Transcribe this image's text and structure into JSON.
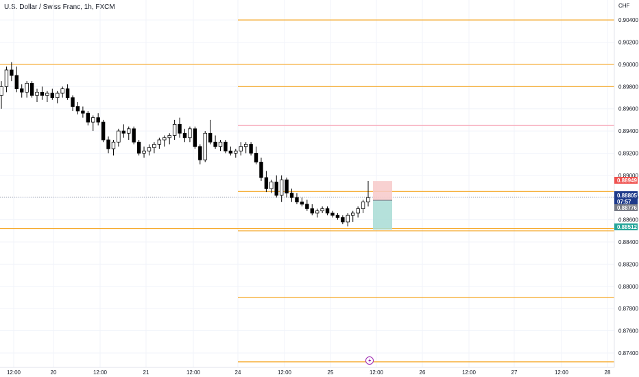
{
  "header": {
    "symbol_title": "U.S. Dollar / Swiss Franc, 1h, FXCM"
  },
  "currency_label": "CHF",
  "colors": {
    "horizontal_line": "#f5a623",
    "resistance_line": "#f7a8b8",
    "stop_zone": "#f7c9c9",
    "target_zone": "#a8dcd5",
    "current_price_tag": "#1e3a8a",
    "stop_tag": "#ef5350",
    "target_tag": "#26a69a",
    "entry_tag": "#787b86",
    "candle_up": "#ffffff",
    "candle_down": "#000000"
  },
  "price_tags": {
    "stop": "0.88949",
    "current": "0.88805",
    "countdown": "07:57",
    "entry": "0.88776",
    "target": "0.88512"
  },
  "event_icon": "lightning-icon",
  "chart_data": {
    "type": "candlestick",
    "title": "U.S. Dollar / Swiss Franc, 1h, FXCM",
    "ylabel": "CHF",
    "ylim": [
      0.8727,
      0.9058
    ],
    "y_ticks": [
      "0.90400",
      "0.90200",
      "0.90000",
      "0.89800",
      "0.89600",
      "0.89400",
      "0.89200",
      "0.89000",
      "0.88800",
      "0.88600",
      "0.88400",
      "0.88200",
      "0.88000",
      "0.87800",
      "0.87600",
      "0.87400"
    ],
    "x_ticks": [
      "12:00",
      "20",
      "12:00",
      "21",
      "12:00",
      "24",
      "12:00",
      "25",
      "12:00",
      "26",
      "12:00",
      "27",
      "12:00",
      "28"
    ],
    "horizontal_lines": [
      {
        "price": 0.904,
        "start": "24"
      },
      {
        "price": 0.9,
        "start": "left-edge"
      },
      {
        "price": 0.898,
        "start": "24"
      },
      {
        "price": 0.88855,
        "start": "24"
      },
      {
        "price": 0.8852,
        "start": "left-edge"
      },
      {
        "price": 0.885,
        "start": "24"
      },
      {
        "price": 0.879,
        "start": "24"
      },
      {
        "price": 0.8732,
        "start": "24"
      }
    ],
    "resistance_line": {
      "price": 0.8945,
      "start": "24"
    },
    "position": {
      "entry": 0.88776,
      "stop": 0.88949,
      "target": 0.88512
    },
    "current_price": 0.88805,
    "candles": [
      [
        0.8972,
        0.8985,
        0.896,
        0.898
      ],
      [
        0.898,
        0.8998,
        0.8975,
        0.8995
      ],
      [
        0.8995,
        0.9002,
        0.8985,
        0.899
      ],
      [
        0.899,
        0.8998,
        0.8975,
        0.8978
      ],
      [
        0.8978,
        0.8982,
        0.897,
        0.8975
      ],
      [
        0.8975,
        0.8985,
        0.897,
        0.8983
      ],
      [
        0.8983,
        0.8985,
        0.897,
        0.8972
      ],
      [
        0.8972,
        0.8978,
        0.8966,
        0.8975
      ],
      [
        0.8975,
        0.898,
        0.8968,
        0.8972
      ],
      [
        0.8972,
        0.8976,
        0.8966,
        0.8974
      ],
      [
        0.8974,
        0.8978,
        0.8968,
        0.897
      ],
      [
        0.897,
        0.8976,
        0.8965,
        0.8974
      ],
      [
        0.8974,
        0.898,
        0.897,
        0.8978
      ],
      [
        0.8978,
        0.8982,
        0.8968,
        0.897
      ],
      [
        0.897,
        0.8972,
        0.8958,
        0.8962
      ],
      [
        0.8962,
        0.8966,
        0.8955,
        0.8958
      ],
      [
        0.8958,
        0.8962,
        0.8952,
        0.8956
      ],
      [
        0.8956,
        0.8958,
        0.8945,
        0.8948
      ],
      [
        0.8948,
        0.8954,
        0.894,
        0.8952
      ],
      [
        0.8952,
        0.8956,
        0.8945,
        0.8948
      ],
      [
        0.8948,
        0.895,
        0.893,
        0.8932
      ],
      [
        0.8932,
        0.8935,
        0.892,
        0.8924
      ],
      [
        0.8924,
        0.8932,
        0.8918,
        0.893
      ],
      [
        0.893,
        0.8942,
        0.8926,
        0.894
      ],
      [
        0.894,
        0.8946,
        0.8934,
        0.8938
      ],
      [
        0.8938,
        0.8944,
        0.8932,
        0.8942
      ],
      [
        0.8942,
        0.8944,
        0.8928,
        0.893
      ],
      [
        0.893,
        0.8932,
        0.8918,
        0.892
      ],
      [
        0.892,
        0.8926,
        0.8916,
        0.8922
      ],
      [
        0.8922,
        0.8928,
        0.8918,
        0.8925
      ],
      [
        0.8925,
        0.893,
        0.892,
        0.8928
      ],
      [
        0.8928,
        0.8934,
        0.8924,
        0.8932
      ],
      [
        0.8932,
        0.8936,
        0.8926,
        0.8934
      ],
      [
        0.8934,
        0.8938,
        0.8928,
        0.8936
      ],
      [
        0.8936,
        0.895,
        0.8932,
        0.8946
      ],
      [
        0.8946,
        0.8952,
        0.8934,
        0.8938
      ],
      [
        0.8938,
        0.8942,
        0.893,
        0.8934
      ],
      [
        0.8934,
        0.8944,
        0.893,
        0.8942
      ],
      [
        0.8942,
        0.8944,
        0.8924,
        0.8926
      ],
      [
        0.8926,
        0.8928,
        0.891,
        0.8914
      ],
      [
        0.8914,
        0.894,
        0.8912,
        0.8938
      ],
      [
        0.8938,
        0.895,
        0.8928,
        0.893
      ],
      [
        0.893,
        0.8936,
        0.8924,
        0.8926
      ],
      [
        0.8926,
        0.8932,
        0.8922,
        0.893
      ],
      [
        0.893,
        0.8932,
        0.892,
        0.8922
      ],
      [
        0.8922,
        0.8926,
        0.8918,
        0.892
      ],
      [
        0.892,
        0.8924,
        0.8916,
        0.8922
      ],
      [
        0.8922,
        0.893,
        0.8918,
        0.8926
      ],
      [
        0.8926,
        0.893,
        0.892,
        0.8928
      ],
      [
        0.8928,
        0.893,
        0.8918,
        0.892
      ],
      [
        0.892,
        0.8926,
        0.891,
        0.8912
      ],
      [
        0.8912,
        0.8916,
        0.8895,
        0.8898
      ],
      [
        0.8898,
        0.8904,
        0.8885,
        0.8888
      ],
      [
        0.8888,
        0.8896,
        0.8884,
        0.8894
      ],
      [
        0.8894,
        0.89,
        0.888,
        0.8882
      ],
      [
        0.8882,
        0.89,
        0.8876,
        0.8896
      ],
      [
        0.8896,
        0.8898,
        0.888,
        0.8884
      ],
      [
        0.8884,
        0.8888,
        0.8876,
        0.888
      ],
      [
        0.888,
        0.8884,
        0.8874,
        0.8876
      ],
      [
        0.8876,
        0.888,
        0.8872,
        0.8874
      ],
      [
        0.8874,
        0.8878,
        0.8868,
        0.887
      ],
      [
        0.887,
        0.8874,
        0.8864,
        0.8866
      ],
      [
        0.8866,
        0.887,
        0.8862,
        0.8868
      ],
      [
        0.8868,
        0.8872,
        0.8866,
        0.887
      ],
      [
        0.887,
        0.8872,
        0.8864,
        0.8866
      ],
      [
        0.8866,
        0.8868,
        0.8862,
        0.8864
      ],
      [
        0.8864,
        0.8866,
        0.886,
        0.8862
      ],
      [
        0.8862,
        0.8864,
        0.8856,
        0.8858
      ],
      [
        0.8858,
        0.8866,
        0.8854,
        0.8864
      ],
      [
        0.8864,
        0.8868,
        0.8858,
        0.8866
      ],
      [
        0.8866,
        0.8872,
        0.8862,
        0.887
      ],
      [
        0.887,
        0.8878,
        0.8866,
        0.8876
      ],
      [
        0.8876,
        0.8895,
        0.8872,
        0.888
      ]
    ]
  }
}
